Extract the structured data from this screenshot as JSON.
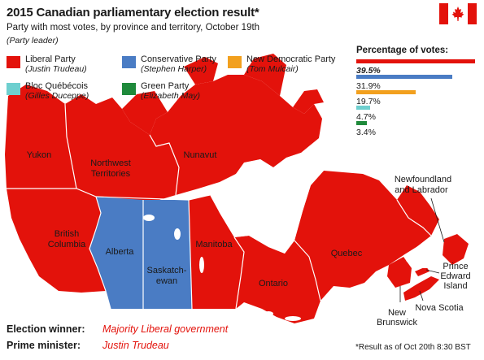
{
  "header": {
    "title": "2015 Canadian parliamentary election result*",
    "subtitle": "Party with most votes, by province and territory, October 19th",
    "note": "(Party leader)"
  },
  "flag": {
    "icon": "canada-flag-icon",
    "colors": [
      "#e3120b",
      "#ffffff"
    ]
  },
  "legend": [
    {
      "party": "Liberal Party",
      "leader": "(Justin Trudeau)",
      "color": "#e3120b"
    },
    {
      "party": "Conservative Party",
      "leader": "(Stephen Harper)",
      "color": "#4a7cc4"
    },
    {
      "party": "New Democratic Party",
      "leader": "(Tom Mulcair)",
      "color": "#f2a01e"
    },
    {
      "party": "Bloc Québécois",
      "leader": "(Gilles Duceppe)",
      "color": "#6ecfcf"
    },
    {
      "party": "Green Party",
      "leader": "(Elizabeth May)",
      "color": "#1f8a3b"
    }
  ],
  "votes": {
    "title": "Percentage of votes:",
    "items": [
      {
        "party": "Liberal Party",
        "label": "39.5%",
        "percent": 39.5,
        "color": "#e3120b"
      },
      {
        "party": "Conservative Party",
        "label": "31.9%",
        "percent": 31.9,
        "color": "#4a7cc4"
      },
      {
        "party": "New Democratic Party",
        "label": "19.7%",
        "percent": 19.7,
        "color": "#f2a01e"
      },
      {
        "party": "Bloc Québécois",
        "label": "4.7%",
        "percent": 4.7,
        "color": "#6ecfcf"
      },
      {
        "party": "Green Party",
        "label": "3.4%",
        "percent": 3.4,
        "color": "#1f8a3b"
      }
    ]
  },
  "map": {
    "regions": [
      {
        "name": "Yukon",
        "winner": "Liberal Party"
      },
      {
        "name": "Northwest Territories",
        "winner": "Liberal Party"
      },
      {
        "name": "Nunavut",
        "winner": "Liberal Party"
      },
      {
        "name": "British Columbia",
        "winner": "Liberal Party"
      },
      {
        "name": "Alberta",
        "winner": "Conservative Party"
      },
      {
        "name": "Saskatchewan",
        "winner": "Conservative Party"
      },
      {
        "name": "Manitoba",
        "winner": "Liberal Party"
      },
      {
        "name": "Ontario",
        "winner": "Liberal Party"
      },
      {
        "name": "Quebec",
        "winner": "Liberal Party"
      },
      {
        "name": "Newfoundland and Labrador",
        "winner": "Liberal Party"
      },
      {
        "name": "New Brunswick",
        "winner": "Liberal Party"
      },
      {
        "name": "Nova Scotia",
        "winner": "Liberal Party"
      },
      {
        "name": "Prince Edward Island",
        "winner": "Liberal Party"
      }
    ],
    "labels": {
      "yukon": "Yukon",
      "nwt_1": "Northwest",
      "nwt_2": "Territories",
      "nunavut": "Nunavut",
      "bc_1": "British",
      "bc_2": "Columbia",
      "alberta": "Alberta",
      "sask_1": "Saskatch-",
      "sask_2": "ewan",
      "manitoba": "Manitoba",
      "ontario": "Ontario",
      "quebec": "Quebec",
      "nl_1": "Newfoundland",
      "nl_2": "and Labrador",
      "pei_1": "Prince",
      "pei_2": "Edward",
      "pei_3": "Island",
      "nb_1": "New",
      "nb_2": "Brunswick",
      "ns": "Nova Scotia"
    }
  },
  "footer": {
    "winner_label": "Election winner:",
    "winner_value": "Majority Liberal government",
    "pm_label": "Prime minister:",
    "pm_value": "Justin Trudeau",
    "footnote": "*Result as of Oct 20th 8:30 BST"
  }
}
